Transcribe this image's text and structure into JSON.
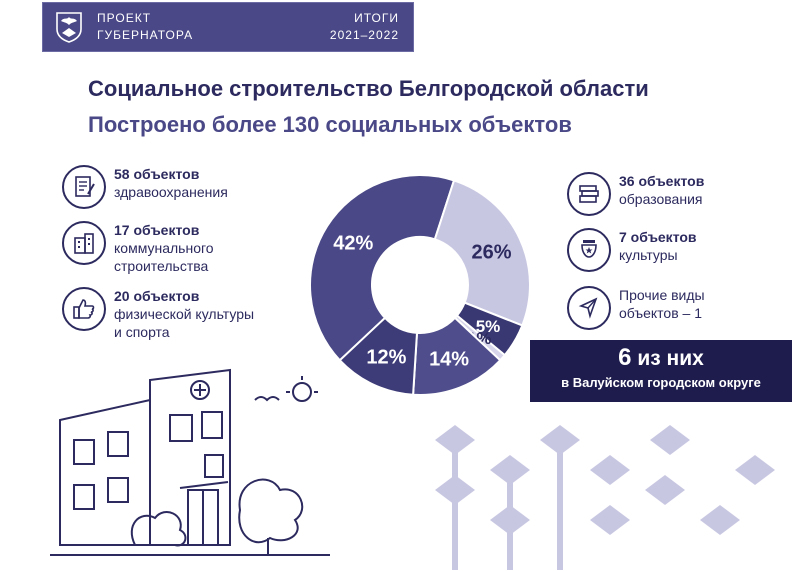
{
  "banner": {
    "project_line1": "ПРОЕКТ",
    "project_line2": "ГУБЕРНАТОРА",
    "results_line1": "ИТОГИ",
    "results_line2": "2021–2022"
  },
  "title": "Социальное строительство Белгородской области",
  "subtitle": "Построено более 130 социальных объектов",
  "left_items": [
    {
      "icon": "document-icon",
      "count": "58 объектов",
      "lines": [
        "здравоохранения"
      ]
    },
    {
      "icon": "building-icon",
      "count": "17 объектов",
      "lines": [
        "коммунального",
        "строительства"
      ]
    },
    {
      "icon": "thumbs-up-icon",
      "count": "20 объектов",
      "lines": [
        "физической культуры",
        "и спорта"
      ]
    }
  ],
  "right_items": [
    {
      "icon": "books-icon",
      "count": "36 объектов",
      "lines": [
        "образования"
      ]
    },
    {
      "icon": "theater-icon",
      "count": "7 объектов",
      "lines": [
        "культуры"
      ]
    },
    {
      "icon": "cursor-icon",
      "count": "Прочие виды",
      "lines": [
        "объектов – 1"
      ]
    }
  ],
  "chart_data": {
    "type": "pie",
    "donut": true,
    "slices": [
      {
        "label": "42%",
        "value": 42,
        "color": "#4a4886"
      },
      {
        "label": "26%",
        "value": 26,
        "color": "#c8c7e2"
      },
      {
        "label": "5%",
        "value": 5,
        "color": "#3a3872"
      },
      {
        "label": "1%",
        "value": 1,
        "color": "#d6d5ea"
      },
      {
        "label": "14%",
        "value": 14,
        "color": "#4f4d8c"
      },
      {
        "label": "12%",
        "value": 12,
        "color": "#3e3c78"
      }
    ]
  },
  "callout": {
    "number": "6",
    "line1_rest": " из них",
    "line2": "в Валуйском городском округе"
  },
  "colors": {
    "accent": "#4a4886",
    "dark": "#2c2a5e",
    "light": "#c8c7e2"
  }
}
